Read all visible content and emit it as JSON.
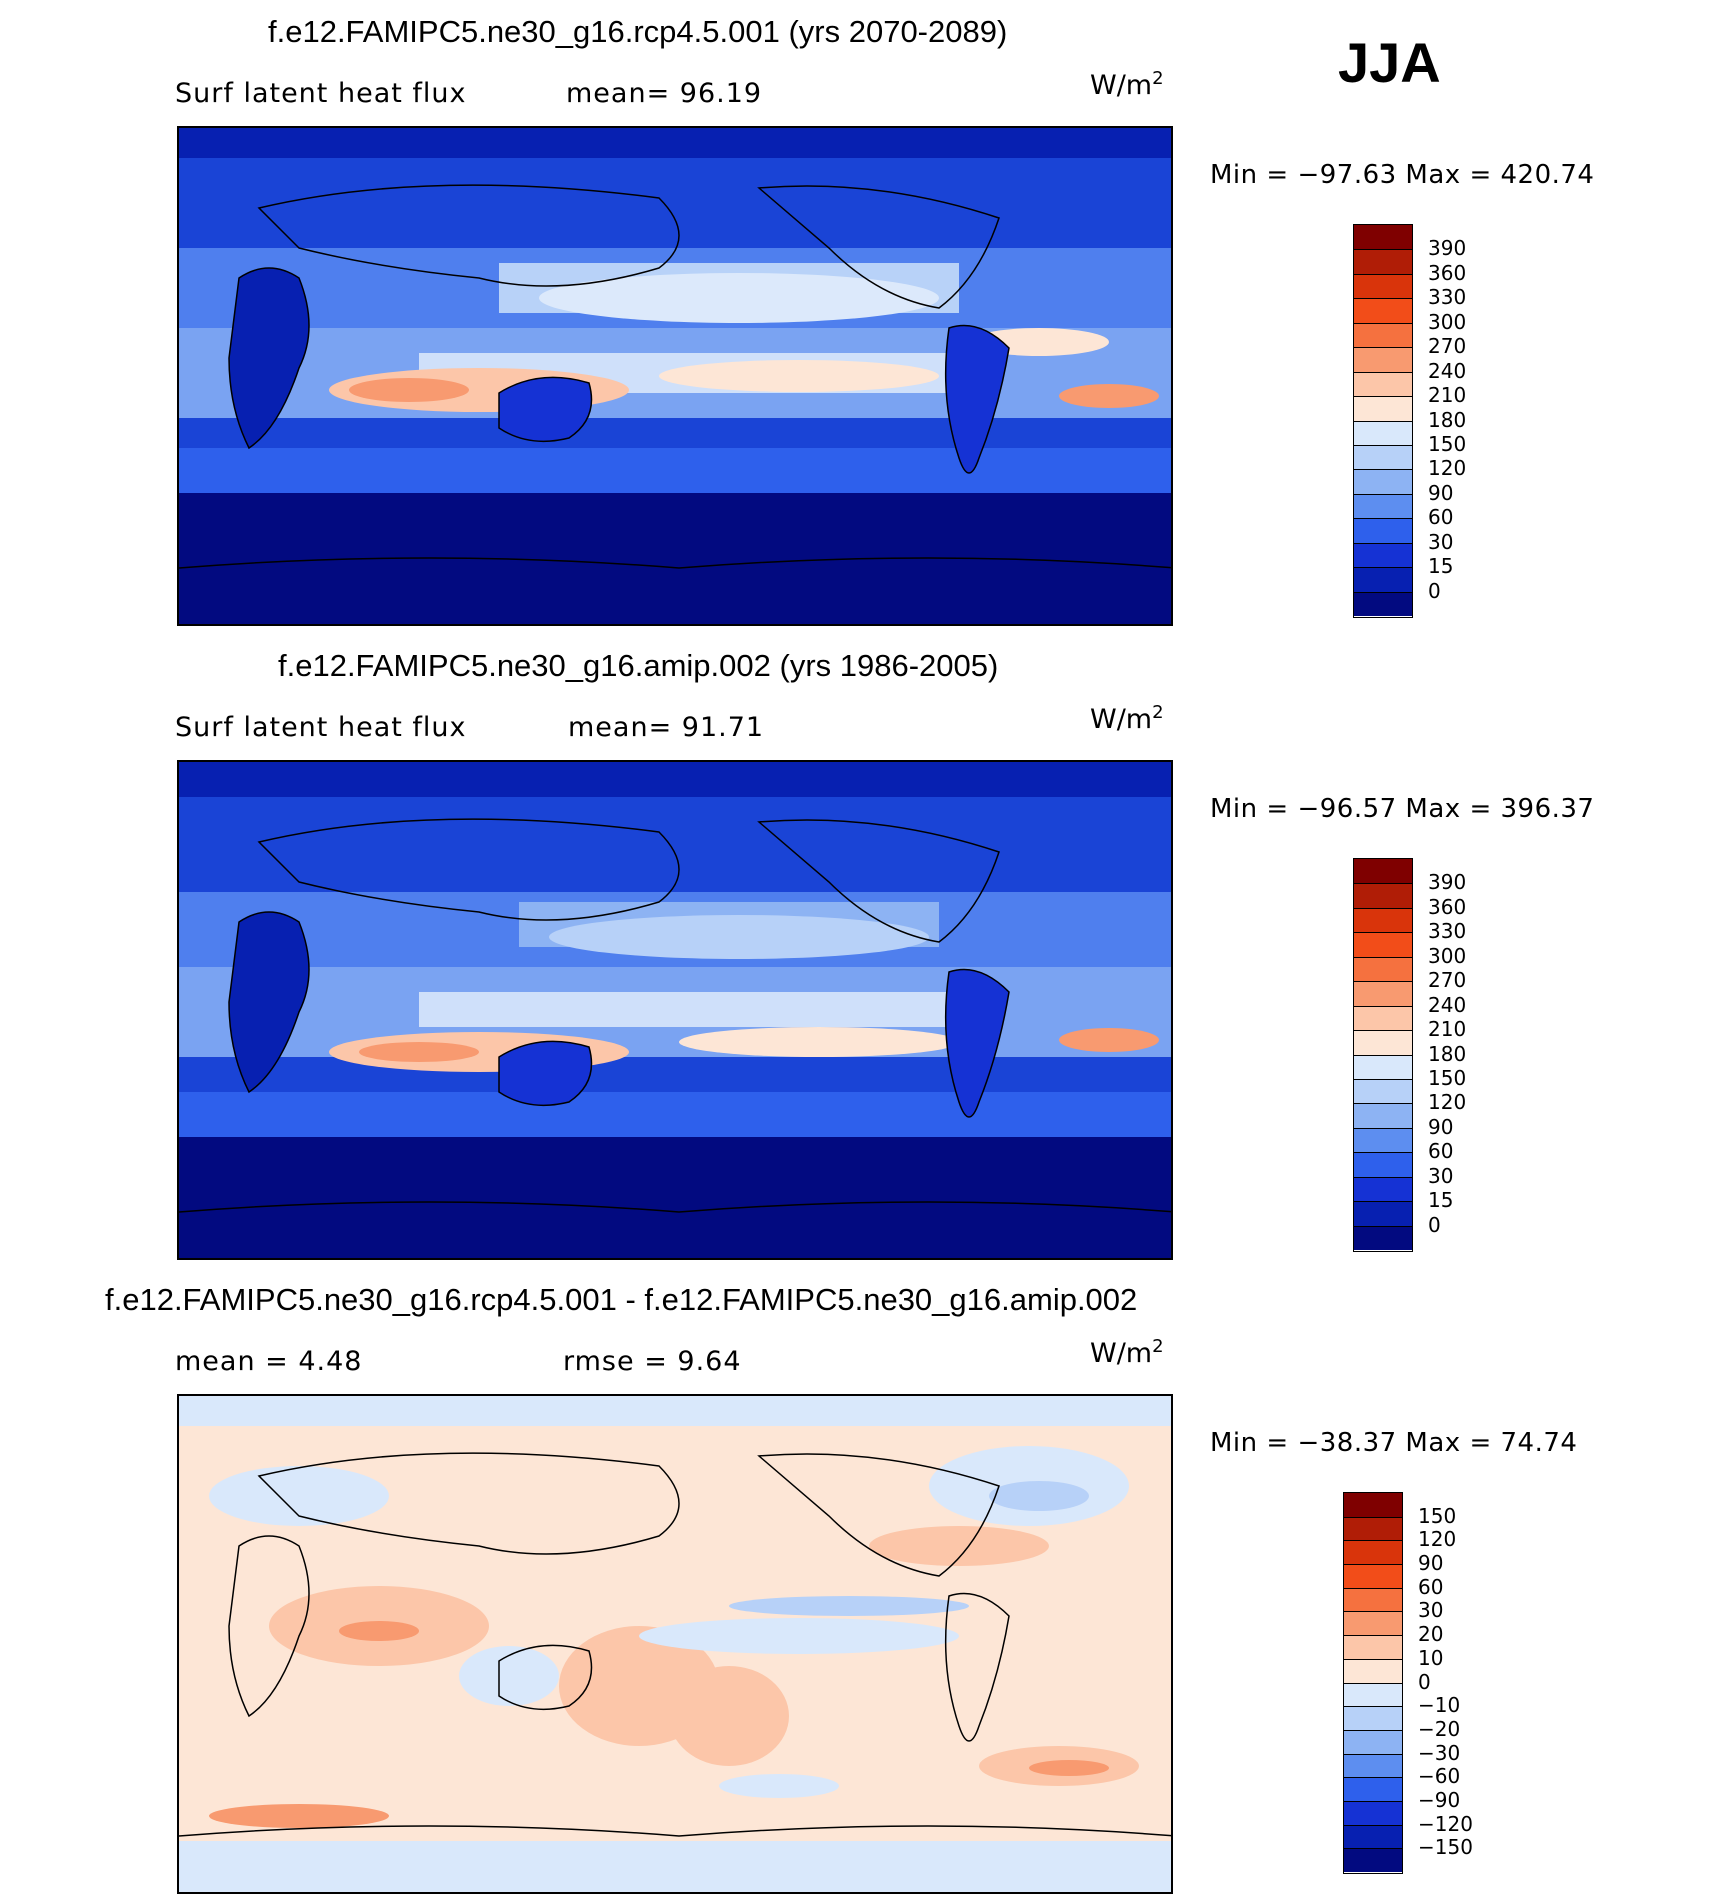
{
  "season": "JJA",
  "panels": [
    {
      "title": "f.e12.FAMIPC5.ne30_g16.rcp4.5.001 (yrs 2070-2089)",
      "left_label": "Surf  latent  heat  flux",
      "right_label": "mean=   96.19",
      "units": "W/m",
      "units_sup": "2",
      "minmax": "Min  =  −97.63  Max  =  420.74"
    },
    {
      "title": "f.e12.FAMIPC5.ne30_g16.amip.002 (yrs 1986-2005)",
      "left_label": "Surf  latent  heat  flux",
      "right_label": "mean=   91.71",
      "units": "W/m",
      "units_sup": "2",
      "minmax": "Min  =  −96.57  Max  =  396.37"
    },
    {
      "title": "f.e12.FAMIPC5.ne30_g16.rcp4.5.001 - f.e12.FAMIPC5.ne30_g16.amip.002",
      "left_label": "mean  =     4.48",
      "right_label": "rmse  =     9.64",
      "units": "W/m",
      "units_sup": "2",
      "minmax": "Min  =  −38.37  Max  =   74.74"
    }
  ],
  "chart_data": [
    {
      "type": "heatmap",
      "title": "f.e12.FAMIPC5.ne30_g16.rcp4.5.001 (yrs 2070-2089)",
      "variable": "Surf latent heat flux",
      "units": "W/m2",
      "mean": 96.19,
      "min": -97.63,
      "max": 420.74,
      "colorbar_levels": [
        "390",
        "360",
        "330",
        "300",
        "270",
        "240",
        "210",
        "180",
        "150",
        "120",
        "90",
        "60",
        "30",
        "15",
        "0"
      ],
      "colorbar_colors": [
        "#7f0000",
        "#b01d06",
        "#d9340b",
        "#f24d19",
        "#f5713f",
        "#f89a70",
        "#fcc6a9",
        "#fde6d6",
        "#d9e8fb",
        "#b7d1f8",
        "#8db3f3",
        "#5d8ef0",
        "#2e60ec",
        "#1532d4",
        "#0720b1",
        "#020a80"
      ]
    },
    {
      "type": "heatmap",
      "title": "f.e12.FAMIPC5.ne30_g16.amip.002 (yrs 1986-2005)",
      "variable": "Surf latent heat flux",
      "units": "W/m2",
      "mean": 91.71,
      "min": -96.57,
      "max": 396.37,
      "colorbar_levels": [
        "390",
        "360",
        "330",
        "300",
        "270",
        "240",
        "210",
        "180",
        "150",
        "120",
        "90",
        "60",
        "30",
        "15",
        "0"
      ],
      "colorbar_colors": [
        "#7f0000",
        "#b01d06",
        "#d9340b",
        "#f24d19",
        "#f5713f",
        "#f89a70",
        "#fcc6a9",
        "#fde6d6",
        "#d9e8fb",
        "#b7d1f8",
        "#8db3f3",
        "#5d8ef0",
        "#2e60ec",
        "#1532d4",
        "#0720b1",
        "#020a80"
      ]
    },
    {
      "type": "heatmap",
      "title": "f.e12.FAMIPC5.ne30_g16.rcp4.5.001 - f.e12.FAMIPC5.ne30_g16.amip.002",
      "units": "W/m2",
      "mean": 4.48,
      "rmse": 9.64,
      "min": -38.37,
      "max": 74.74,
      "colorbar_levels": [
        "150",
        "120",
        "90",
        "60",
        "30",
        "20",
        "10",
        "0",
        "−10",
        "−20",
        "−30",
        "−60",
        "−90",
        "−120",
        "−150"
      ],
      "colorbar_colors": [
        "#7f0000",
        "#b01d06",
        "#d9340b",
        "#f24d19",
        "#f5713f",
        "#f89a70",
        "#fcc6a9",
        "#fde6d6",
        "#d9e8fb",
        "#b7d1f8",
        "#8db3f3",
        "#5d8ef0",
        "#2e60ec",
        "#1532d4",
        "#0720b1",
        "#020a80"
      ]
    }
  ]
}
